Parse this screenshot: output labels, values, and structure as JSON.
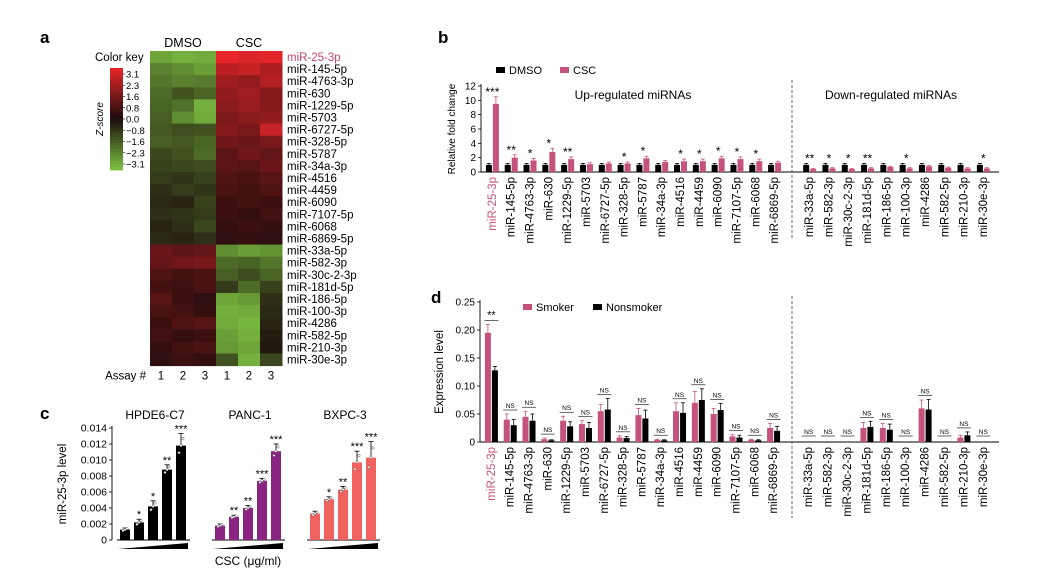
{
  "panels": {
    "a": "a",
    "b": "b",
    "c": "c",
    "d": "d"
  },
  "chart_data": [
    {
      "panel": "a",
      "type": "heatmap",
      "columns": [
        "DMSO",
        "CSC"
      ],
      "assay_label": "Assay #",
      "assays": [
        "1",
        "2",
        "3",
        "1",
        "2",
        "3"
      ],
      "color_key_title": "Color key",
      "color_key_axis": "Z-score",
      "color_key_ticks": [
        "3.1",
        "2.3",
        "1.6",
        "0.8",
        "0.0",
        "−0.8",
        "−1.6",
        "−2.3",
        "−3.1"
      ],
      "colors": {
        "high": "#e8262a",
        "mid": "#1b0c0c",
        "low": "#7dc242",
        "highlight": "#c0466e"
      },
      "highlight_row": "miR-25-3p",
      "rows": [
        "miR-25-3p",
        "miR-145-5p",
        "miR-4763-3p",
        "miR-630",
        "miR-1229-5p",
        "miR-5703",
        "miR-6727-5p",
        "miR-328-5p",
        "miR-5787",
        "miR-34a-3p",
        "miR-4516",
        "miR-4459",
        "miR-6090",
        "miR-7107-5p",
        "miR-6068",
        "miR-6869-5p",
        "miR-33a-5p",
        "miR-582-3p",
        "miR-30c-2-3p",
        "miR-181d-5p",
        "miR-186-5p",
        "miR-100-3p",
        "miR-4286",
        "miR-582-5p",
        "miR-210-3p",
        "miR-30e-3p"
      ],
      "z": [
        [
          -2.6,
          -2.8,
          -2.7,
          3.1,
          2.9,
          3.0
        ],
        [
          -2.0,
          -2.2,
          -2.5,
          2.4,
          2.6,
          2.2
        ],
        [
          -1.8,
          -2.0,
          -1.9,
          2.0,
          1.8,
          2.3
        ],
        [
          -1.6,
          -1.2,
          -1.5,
          1.8,
          2.0,
          1.6
        ],
        [
          -1.5,
          -1.7,
          -2.8,
          1.7,
          1.9,
          1.6
        ],
        [
          -1.4,
          -2.2,
          -2.7,
          1.5,
          1.7,
          1.8
        ],
        [
          -1.3,
          -1.1,
          -1.2,
          1.6,
          1.4,
          2.6
        ],
        [
          -1.4,
          -1.3,
          -1.5,
          1.3,
          1.2,
          1.4
        ],
        [
          -1.0,
          -1.2,
          -1.6,
          1.0,
          1.3,
          1.1
        ],
        [
          -0.9,
          -1.0,
          -1.1,
          1.0,
          0.9,
          1.2
        ],
        [
          -0.8,
          -0.7,
          -0.9,
          0.8,
          0.7,
          0.9
        ],
        [
          -0.6,
          -0.8,
          -0.7,
          0.7,
          0.6,
          0.8
        ],
        [
          -0.5,
          -0.4,
          -0.9,
          0.5,
          0.6,
          0.5
        ],
        [
          -0.6,
          -0.7,
          -0.8,
          0.5,
          0.4,
          0.6
        ],
        [
          -0.4,
          -0.6,
          -1.0,
          0.4,
          0.5,
          0.4
        ],
        [
          -0.5,
          -0.4,
          -0.6,
          0.3,
          0.4,
          0.3
        ],
        [
          1.2,
          1.0,
          1.1,
          -2.2,
          -2.5,
          -2.3
        ],
        [
          1.1,
          1.3,
          1.4,
          -1.6,
          -1.5,
          -1.8
        ],
        [
          0.8,
          0.6,
          0.7,
          -1.4,
          -1.1,
          -1.5
        ],
        [
          0.6,
          0.5,
          0.7,
          -0.8,
          -1.6,
          -0.9
        ],
        [
          0.9,
          0.5,
          0.3,
          -2.6,
          -2.4,
          -0.6
        ],
        [
          0.7,
          0.6,
          0.4,
          -2.8,
          -2.7,
          -0.5
        ],
        [
          0.5,
          0.8,
          0.9,
          -2.7,
          -2.9,
          -0.4
        ],
        [
          0.6,
          0.4,
          0.5,
          -2.5,
          -2.8,
          -0.3
        ],
        [
          0.4,
          0.6,
          0.7,
          -2.4,
          -2.6,
          -0.2
        ],
        [
          0.3,
          0.5,
          0.4,
          -1.2,
          -2.8,
          -1.0
        ]
      ]
    },
    {
      "panel": "b",
      "type": "bar",
      "ylabel": "Relative fold change",
      "ylim": [
        0,
        12
      ],
      "yticks": [
        0,
        2,
        4,
        6,
        8,
        10,
        12
      ],
      "series": [
        {
          "name": "DMSO",
          "color": "#000000",
          "values": [
            1,
            1,
            1,
            1,
            1,
            1,
            1,
            1,
            1,
            1,
            1,
            1,
            1,
            1,
            1,
            1,
            1,
            1,
            1,
            1,
            1,
            1,
            1,
            1,
            1,
            1
          ],
          "errors": [
            0.2,
            0.2,
            0.2,
            0.2,
            0.2,
            0.2,
            0.2,
            0.2,
            0.2,
            0.2,
            0.2,
            0.2,
            0.2,
            0.2,
            0.2,
            0.2,
            0.2,
            0.2,
            0.2,
            0.2,
            0.2,
            0.2,
            0.2,
            0.2,
            0.2,
            0.2
          ]
        },
        {
          "name": "CSC",
          "color": "#c4527d",
          "values": [
            9.5,
            2.0,
            1.6,
            2.8,
            1.8,
            1.1,
            1.2,
            1.2,
            1.9,
            1.4,
            1.5,
            1.5,
            1.9,
            1.8,
            1.5,
            1.3,
            0.4,
            0.5,
            0.4,
            0.5,
            0.7,
            0.5,
            0.8,
            0.6,
            0.5,
            0.5
          ],
          "errors": [
            1.0,
            0.4,
            0.3,
            0.5,
            0.3,
            0.2,
            0.2,
            0.2,
            0.3,
            0.2,
            0.3,
            0.3,
            0.3,
            0.3,
            0.3,
            0.2,
            0.1,
            0.1,
            0.1,
            0.1,
            0.1,
            0.1,
            0.1,
            0.1,
            0.1,
            0.1
          ]
        }
      ],
      "significance": [
        "***",
        "**",
        "*",
        "*",
        "**",
        "",
        "",
        "*",
        "*",
        "",
        "*",
        "*",
        "*",
        "*",
        "*",
        "",
        "**",
        "*",
        "*",
        "**",
        "",
        "*",
        "",
        "",
        "",
        "*"
      ],
      "group_labels": [
        "Up-regulated miRNAs",
        "Down-regulated miRNAs"
      ],
      "group_split_after": 16,
      "legend_placement": "top-left",
      "highlight_category": "miR-25-3p",
      "categories": [
        "miR-25-3p",
        "miR-145-5p",
        "miR-4763-3p",
        "miR-630",
        "miR-1229-5p",
        "miR-5703",
        "miR-6727-5p",
        "miR-328-5p",
        "miR-5787",
        "miR-34a-3p",
        "miR-4516",
        "miR-4459",
        "miR-6090",
        "miR-7107-5p",
        "miR-6068",
        "miR-6869-5p",
        "miR-33a-5p",
        "miR-582-3p",
        "miR-30c-2-3p",
        "miR-181d-5p",
        "miR-186-5p",
        "miR-100-3p",
        "miR-4286",
        "miR-582-5p",
        "miR-210-3p",
        "miR-30e-3p"
      ]
    },
    {
      "panel": "c",
      "type": "bar",
      "ylabel": "miR-25-3p level",
      "ylim": [
        0,
        0.014
      ],
      "yticks": [
        "0",
        "0.002",
        "0.004",
        "0.006",
        "0.008",
        "0.010",
        "0.012",
        "0.014"
      ],
      "xlabel": "CSC (μg/ml)",
      "groups": [
        {
          "name": "HPDE6-C7",
          "color": "#000000",
          "values": [
            0.0013,
            0.0022,
            0.0042,
            0.0088,
            0.0118
          ],
          "errors": [
            0.0002,
            0.0004,
            0.0007,
            0.0006,
            0.0015
          ],
          "significance": [
            "",
            "*",
            "*",
            "**",
            "***"
          ]
        },
        {
          "name": "PANC-1",
          "color": "#8b2383",
          "values": [
            0.0018,
            0.0029,
            0.004,
            0.0074,
            0.0111
          ],
          "errors": [
            0.0002,
            0.0002,
            0.0003,
            0.0003,
            0.0009
          ],
          "significance": [
            "",
            "**",
            "**",
            "***",
            "***"
          ]
        },
        {
          "name": "BXPC-3",
          "color": "#ef6260",
          "values": [
            0.0033,
            0.0051,
            0.0063,
            0.0097,
            0.0103
          ],
          "errors": [
            0.0003,
            0.0003,
            0.0004,
            0.0014,
            0.002
          ],
          "significance": [
            "",
            "*",
            "**",
            "***",
            "***"
          ]
        }
      ]
    },
    {
      "panel": "d",
      "type": "bar",
      "ylabel": "Expression level",
      "ylim": [
        0,
        0.25
      ],
      "yticks": [
        "0",
        "0.05",
        "0.10",
        "0.15",
        "0.20",
        "0.25"
      ],
      "series": [
        {
          "name": "Smoker",
          "color": "#c4527d",
          "values": [
            0.195,
            0.04,
            0.045,
            0.005,
            0.038,
            0.032,
            0.055,
            0.008,
            0.048,
            0.004,
            0.055,
            0.07,
            0.05,
            0.01,
            0.004,
            0.025,
            0,
            0,
            0,
            0.025,
            0.025,
            0,
            0.06,
            0,
            0.008,
            0
          ],
          "errors": [
            0.015,
            0.01,
            0.01,
            0.002,
            0.008,
            0.006,
            0.012,
            0.003,
            0.012,
            0.001,
            0.015,
            0.02,
            0.01,
            0.003,
            0.001,
            0.008,
            0,
            0,
            0,
            0.01,
            0.008,
            0,
            0.015,
            0,
            0.004,
            0
          ]
        },
        {
          "name": "Nonsmoker",
          "color": "#000000",
          "values": [
            0.128,
            0.03,
            0.038,
            0.003,
            0.028,
            0.025,
            0.058,
            0.007,
            0.042,
            0.003,
            0.052,
            0.075,
            0.057,
            0.008,
            0.003,
            0.02,
            0,
            0,
            0,
            0.027,
            0.022,
            0,
            0.058,
            0,
            0.012,
            0
          ],
          "errors": [
            0.007,
            0.01,
            0.012,
            0.001,
            0.008,
            0.01,
            0.02,
            0.003,
            0.015,
            0.001,
            0.018,
            0.02,
            0.012,
            0.004,
            0.001,
            0.008,
            0,
            0,
            0,
            0.01,
            0.01,
            0,
            0.018,
            0,
            0.006,
            0
          ]
        }
      ],
      "significance": [
        "**",
        "NS",
        "NS",
        "NS",
        "NS",
        "NS",
        "NS",
        "NS",
        "NS",
        "NS",
        "NS",
        "NS",
        "NS",
        "NS",
        "NS",
        "NS",
        "NS",
        "NS",
        "NS",
        "NS",
        "NS",
        "NS",
        "NS",
        "NS",
        "NS",
        "NS"
      ],
      "group_split_after": 16,
      "legend_placement": "top-left",
      "highlight_category": "miR-25-3p",
      "categories": [
        "miR-25-3p",
        "miR-145-5p",
        "miR-4763-3p",
        "miR-630",
        "miR-1229-5p",
        "miR-5703",
        "miR-6727-5p",
        "miR-328-5p",
        "miR-5787",
        "miR-34a-3p",
        "miR-4516",
        "miR-4459",
        "miR-6090",
        "miR-7107-5p",
        "miR-6068",
        "miR-6869-5p",
        "miR-33a-5p",
        "miR-582-3p",
        "miR-30c-2-3p",
        "miR-181d-5p",
        "miR-186-5p",
        "miR-100-3p",
        "miR-4286",
        "miR-582-5p",
        "miR-210-3p",
        "miR-30e-3p"
      ]
    }
  ]
}
